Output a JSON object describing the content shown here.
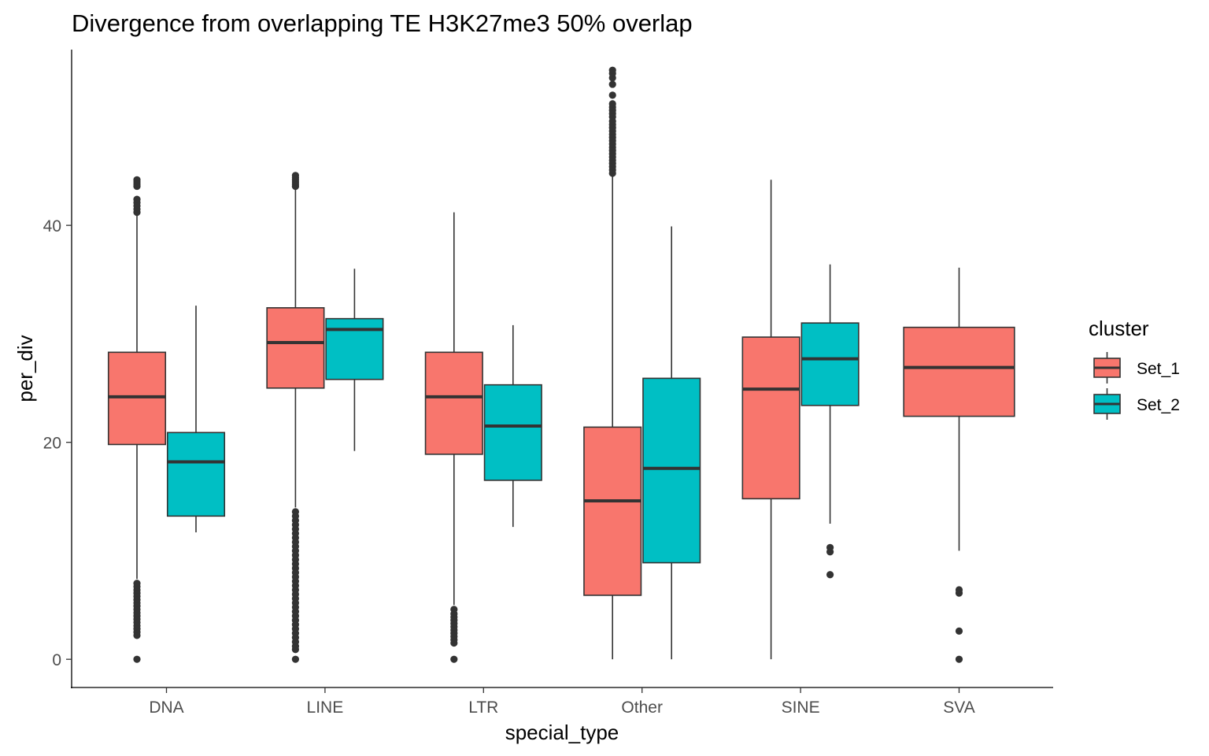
{
  "chart_data": {
    "type": "boxplot",
    "title": "Divergence from overlapping TE H3K27me3 50% overlap",
    "xlabel": "special_type",
    "ylabel": "per_div",
    "ylim": [
      -2.6,
      56.2
    ],
    "yticks": [
      0,
      20,
      40
    ],
    "grid": false,
    "legend": {
      "title": "cluster",
      "position": "right",
      "entries": [
        {
          "name": "Set_1",
          "color": "#F8766D"
        },
        {
          "name": "Set_2",
          "color": "#00BFC4"
        }
      ]
    },
    "categories": [
      "DNA",
      "LINE",
      "LTR",
      "Other",
      "SINE",
      "SVA"
    ],
    "series": [
      {
        "name": "Set_1",
        "color": "#F8766D",
        "boxes": [
          {
            "category": "DNA",
            "whisker_low": 7.4,
            "q1": 19.8,
            "median": 24.2,
            "q3": 28.3,
            "whisker_high": 40.9,
            "outliers": [
              0,
              2.2,
              2.5,
              2.8,
              3.1,
              3.4,
              3.7,
              4.0,
              4.3,
              4.6,
              4.9,
              5.2,
              5.5,
              5.8,
              6.1,
              6.4,
              6.7,
              7.0,
              41.2,
              41.5,
              41.8,
              42.1,
              42.4,
              43.6,
              43.8,
              44.0,
              44.2
            ]
          },
          {
            "category": "LINE",
            "whisker_low": 14.0,
            "q1": 25.0,
            "median": 29.2,
            "q3": 32.4,
            "whisker_high": 43.4,
            "outliers": [
              0,
              0.9,
              1.2,
              1.6,
              2.0,
              2.4,
              2.8,
              3.2,
              3.6,
              4.0,
              4.4,
              4.8,
              5.2,
              5.6,
              6.0,
              6.4,
              6.8,
              7.2,
              7.6,
              8.0,
              8.4,
              8.8,
              9.2,
              9.6,
              10.0,
              10.4,
              10.8,
              11.2,
              11.6,
              12.0,
              12.4,
              12.8,
              13.2,
              13.6,
              43.6,
              43.8,
              44.0,
              44.2,
              44.4,
              44.6
            ]
          },
          {
            "category": "LTR",
            "whisker_low": 5.0,
            "q1": 18.9,
            "median": 24.2,
            "q3": 28.3,
            "whisker_high": 41.2,
            "outliers": [
              0,
              1.5,
              1.8,
              2.1,
              2.4,
              2.7,
              3.0,
              3.3,
              3.6,
              3.9,
              4.2,
              4.6
            ]
          },
          {
            "category": "Other",
            "whisker_low": 0,
            "q1": 5.9,
            "median": 14.6,
            "q3": 21.4,
            "whisker_high": 44.6,
            "outliers": [
              44.8,
              45.1,
              45.4,
              45.7,
              46.0,
              46.3,
              46.6,
              46.9,
              47.2,
              47.5,
              47.8,
              48.1,
              48.4,
              48.7,
              49.0,
              49.3,
              49.6,
              50.0,
              50.3,
              50.6,
              50.9,
              51.2,
              52.0,
              53.0,
              53.6,
              54.0,
              54.3
            ]
          },
          {
            "category": "SINE",
            "whisker_low": 0,
            "q1": 14.8,
            "median": 24.9,
            "q3": 29.7,
            "whisker_high": 44.2,
            "outliers": []
          },
          {
            "category": "SVA",
            "whisker_low": 10.0,
            "q1": 22.4,
            "median": 26.9,
            "q3": 30.6,
            "whisker_high": 36.1,
            "outliers": [
              0,
              2.6,
              6.1,
              6.4
            ]
          }
        ]
      },
      {
        "name": "Set_2",
        "color": "#00BFC4",
        "boxes": [
          {
            "category": "DNA",
            "whisker_low": 11.7,
            "q1": 13.2,
            "median": 18.2,
            "q3": 20.9,
            "whisker_high": 32.6,
            "outliers": []
          },
          {
            "category": "LINE",
            "whisker_low": 19.2,
            "q1": 25.8,
            "median": 30.4,
            "q3": 31.4,
            "whisker_high": 36.0,
            "outliers": []
          },
          {
            "category": "LTR",
            "whisker_low": 12.2,
            "q1": 16.5,
            "median": 21.5,
            "q3": 25.3,
            "whisker_high": 30.8,
            "outliers": []
          },
          {
            "category": "Other",
            "whisker_low": 0,
            "q1": 8.9,
            "median": 17.6,
            "q3": 25.9,
            "whisker_high": 39.9,
            "outliers": []
          },
          {
            "category": "SINE",
            "whisker_low": 12.5,
            "q1": 23.4,
            "median": 27.7,
            "q3": 31.0,
            "whisker_high": 36.4,
            "outliers": [
              7.8,
              9.9,
              10.3
            ]
          },
          {
            "category": "SVA",
            "absent": true
          }
        ]
      }
    ]
  }
}
